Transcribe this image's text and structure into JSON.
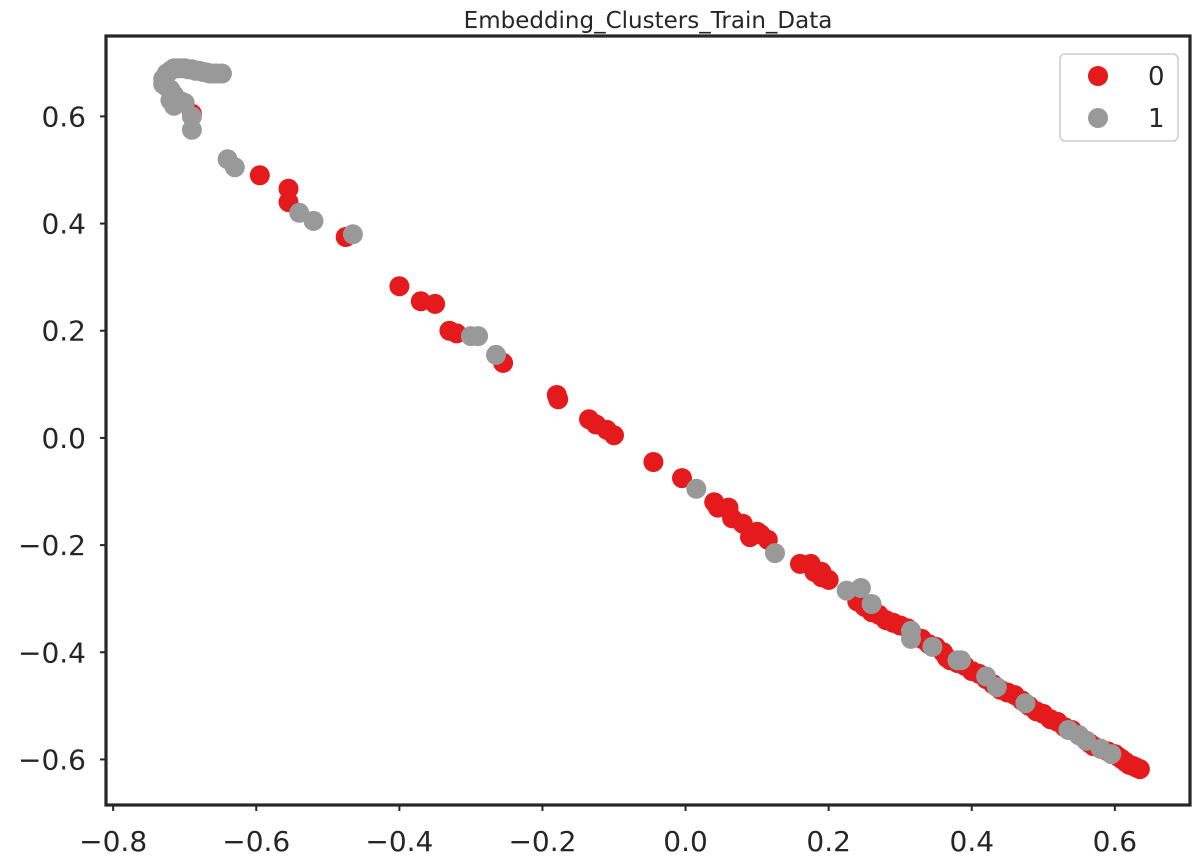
{
  "chart_data": {
    "type": "scatter",
    "title": "Embedding_Clusters_Train_Data",
    "xlabel": "",
    "ylabel": "",
    "xlim": [
      -0.81,
      0.705
    ],
    "ylim": [
      -0.685,
      0.75
    ],
    "xticks": [
      -0.8,
      -0.6,
      -0.4,
      -0.2,
      0.0,
      0.2,
      0.4,
      0.6
    ],
    "yticks": [
      -0.6,
      -0.4,
      -0.2,
      0.0,
      0.2,
      0.4,
      0.6
    ],
    "xtick_labels": [
      "−0.8",
      "−0.6",
      "−0.4",
      "−0.2",
      "0.0",
      "0.2",
      "0.4",
      "0.6"
    ],
    "ytick_labels": [
      "−0.6",
      "−0.4",
      "−0.2",
      "0.0",
      "0.2",
      "0.4",
      "0.6"
    ],
    "grid": false,
    "legend_position": "top-right",
    "colors": {
      "0": "#e41a1c",
      "1": "#999999",
      "axis": "#262626"
    },
    "series": [
      {
        "name": "0",
        "color": "#e41a1c",
        "points": [
          [
            -0.69,
            0.605
          ],
          [
            -0.595,
            0.49
          ],
          [
            -0.555,
            0.465
          ],
          [
            -0.555,
            0.44
          ],
          [
            -0.475,
            0.375
          ],
          [
            -0.4,
            0.283
          ],
          [
            -0.37,
            0.255
          ],
          [
            -0.35,
            0.25
          ],
          [
            -0.33,
            0.2
          ],
          [
            -0.32,
            0.195
          ],
          [
            -0.255,
            0.14
          ],
          [
            -0.18,
            0.08
          ],
          [
            -0.178,
            0.072
          ],
          [
            -0.135,
            0.035
          ],
          [
            -0.125,
            0.025
          ],
          [
            -0.11,
            0.015
          ],
          [
            -0.1,
            0.005
          ],
          [
            -0.045,
            -0.045
          ],
          [
            -0.005,
            -0.075
          ],
          [
            0.04,
            -0.12
          ],
          [
            0.045,
            -0.13
          ],
          [
            0.06,
            -0.13
          ],
          [
            0.065,
            -0.15
          ],
          [
            0.08,
            -0.16
          ],
          [
            0.09,
            -0.185
          ],
          [
            0.1,
            -0.175
          ],
          [
            0.105,
            -0.18
          ],
          [
            0.115,
            -0.19
          ],
          [
            0.16,
            -0.235
          ],
          [
            0.175,
            -0.235
          ],
          [
            0.18,
            -0.25
          ],
          [
            0.19,
            -0.25
          ],
          [
            0.19,
            -0.26
          ],
          [
            0.2,
            -0.265
          ],
          [
            0.24,
            -0.305
          ],
          [
            0.25,
            -0.315
          ],
          [
            0.26,
            -0.325
          ],
          [
            0.27,
            -0.33
          ],
          [
            0.28,
            -0.34
          ],
          [
            0.29,
            -0.345
          ],
          [
            0.3,
            -0.35
          ],
          [
            0.31,
            -0.355
          ],
          [
            0.32,
            -0.37
          ],
          [
            0.33,
            -0.375
          ],
          [
            0.34,
            -0.385
          ],
          [
            0.35,
            -0.39
          ],
          [
            0.36,
            -0.4
          ],
          [
            0.365,
            -0.41
          ],
          [
            0.37,
            -0.415
          ],
          [
            0.38,
            -0.42
          ],
          [
            0.39,
            -0.425
          ],
          [
            0.4,
            -0.435
          ],
          [
            0.41,
            -0.44
          ],
          [
            0.42,
            -0.45
          ],
          [
            0.43,
            -0.46
          ],
          [
            0.44,
            -0.47
          ],
          [
            0.45,
            -0.475
          ],
          [
            0.46,
            -0.48
          ],
          [
            0.47,
            -0.49
          ],
          [
            0.48,
            -0.5
          ],
          [
            0.49,
            -0.51
          ],
          [
            0.5,
            -0.515
          ],
          [
            0.51,
            -0.525
          ],
          [
            0.52,
            -0.53
          ],
          [
            0.53,
            -0.54
          ],
          [
            0.54,
            -0.545
          ],
          [
            0.55,
            -0.555
          ],
          [
            0.56,
            -0.565
          ],
          [
            0.565,
            -0.57
          ],
          [
            0.57,
            -0.575
          ],
          [
            0.58,
            -0.58
          ],
          [
            0.59,
            -0.585
          ],
          [
            0.6,
            -0.59
          ],
          [
            0.605,
            -0.595
          ],
          [
            0.61,
            -0.6
          ],
          [
            0.615,
            -0.605
          ],
          [
            0.62,
            -0.61
          ],
          [
            0.625,
            -0.612
          ],
          [
            0.63,
            -0.615
          ],
          [
            0.635,
            -0.618
          ]
        ]
      },
      {
        "name": "1",
        "color": "#999999",
        "points": [
          [
            -0.73,
            0.67
          ],
          [
            -0.725,
            0.68
          ],
          [
            -0.72,
            0.685
          ],
          [
            -0.715,
            0.69
          ],
          [
            -0.71,
            0.69
          ],
          [
            -0.705,
            0.69
          ],
          [
            -0.7,
            0.69
          ],
          [
            -0.695,
            0.688
          ],
          [
            -0.69,
            0.688
          ],
          [
            -0.685,
            0.685
          ],
          [
            -0.68,
            0.685
          ],
          [
            -0.675,
            0.683
          ],
          [
            -0.67,
            0.682
          ],
          [
            -0.665,
            0.68
          ],
          [
            -0.66,
            0.68
          ],
          [
            -0.655,
            0.68
          ],
          [
            -0.648,
            0.68
          ],
          [
            -0.73,
            0.66
          ],
          [
            -0.725,
            0.655
          ],
          [
            -0.72,
            0.65
          ],
          [
            -0.715,
            0.64
          ],
          [
            -0.72,
            0.63
          ],
          [
            -0.715,
            0.62
          ],
          [
            -0.705,
            0.628
          ],
          [
            -0.7,
            0.625
          ],
          [
            -0.69,
            0.6
          ],
          [
            -0.69,
            0.575
          ],
          [
            -0.64,
            0.52
          ],
          [
            -0.63,
            0.505
          ],
          [
            -0.54,
            0.42
          ],
          [
            -0.52,
            0.405
          ],
          [
            -0.465,
            0.38
          ],
          [
            -0.3,
            0.19
          ],
          [
            -0.29,
            0.19
          ],
          [
            -0.265,
            0.155
          ],
          [
            0.015,
            -0.095
          ],
          [
            0.125,
            -0.215
          ],
          [
            0.225,
            -0.285
          ],
          [
            0.245,
            -0.28
          ],
          [
            0.26,
            -0.31
          ],
          [
            0.315,
            -0.36
          ],
          [
            0.315,
            -0.375
          ],
          [
            0.345,
            -0.39
          ],
          [
            0.38,
            -0.415
          ],
          [
            0.385,
            -0.415
          ],
          [
            0.42,
            -0.445
          ],
          [
            0.435,
            -0.465
          ],
          [
            0.475,
            -0.495
          ],
          [
            0.535,
            -0.545
          ],
          [
            0.55,
            -0.555
          ],
          [
            0.56,
            -0.565
          ],
          [
            0.58,
            -0.58
          ],
          [
            0.595,
            -0.59
          ]
        ]
      }
    ]
  }
}
